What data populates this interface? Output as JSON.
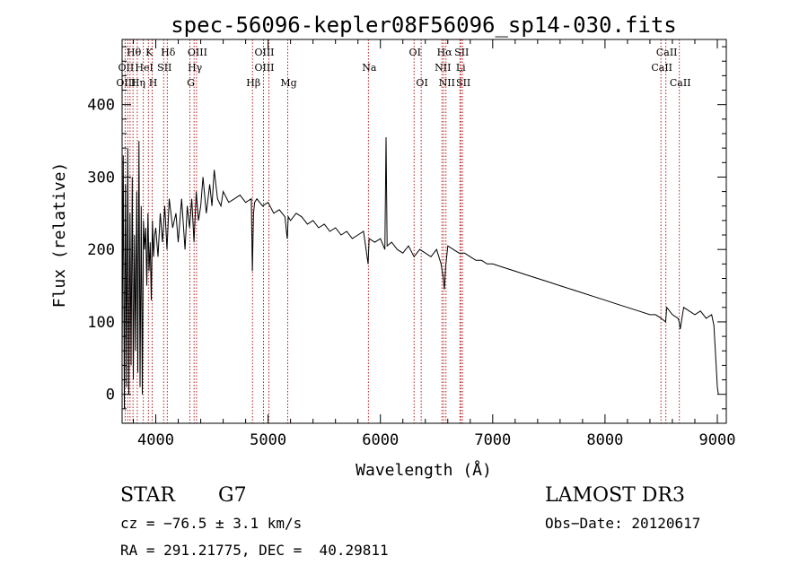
{
  "chart_data": {
    "type": "line",
    "title": "spec-56096-kepler08F56096_sp14-030.fits",
    "xlabel": "Wavelength (Å)",
    "ylabel": "Flux (relative)",
    "xlim": [
      3700,
      9080
    ],
    "ylim": [
      -40,
      490
    ],
    "xticks": [
      4000,
      5000,
      6000,
      7000,
      8000,
      9000
    ],
    "yticks": [
      0,
      100,
      200,
      300,
      400
    ],
    "series": [
      {
        "name": "spectrum",
        "x": [
          3700,
          3710,
          3720,
          3730,
          3740,
          3750,
          3760,
          3770,
          3780,
          3790,
          3800,
          3810,
          3820,
          3830,
          3840,
          3850,
          3860,
          3870,
          3880,
          3890,
          3900,
          3910,
          3920,
          3930,
          3940,
          3950,
          3960,
          3970,
          3980,
          3990,
          4000,
          4020,
          4040,
          4060,
          4080,
          4100,
          4120,
          4150,
          4180,
          4200,
          4230,
          4260,
          4280,
          4300,
          4320,
          4340,
          4360,
          4380,
          4400,
          4420,
          4450,
          4480,
          4500,
          4520,
          4550,
          4580,
          4600,
          4650,
          4700,
          4750,
          4800,
          4850,
          4860,
          4870,
          4880,
          4900,
          4950,
          5000,
          5050,
          5100,
          5150,
          5170,
          5180,
          5200,
          5250,
          5300,
          5350,
          5400,
          5450,
          5500,
          5550,
          5600,
          5650,
          5700,
          5750,
          5800,
          5850,
          5890,
          5900,
          5950,
          6000,
          6040,
          6050,
          6060,
          6100,
          6150,
          6200,
          6250,
          6300,
          6350,
          6400,
          6450,
          6500,
          6540,
          6560,
          6570,
          6580,
          6600,
          6650,
          6700,
          6750,
          6800,
          6850,
          6900,
          6950,
          7000,
          7100,
          7200,
          7300,
          7400,
          7500,
          7600,
          7700,
          7800,
          7900,
          8000,
          8100,
          8200,
          8300,
          8400,
          8450,
          8500,
          8540,
          8550,
          8600,
          8650,
          8660,
          8670,
          8700,
          8750,
          8800,
          8850,
          8900,
          8950,
          8970,
          8990,
          9000,
          9005,
          9010
        ],
        "values": [
          50,
          330,
          -20,
          290,
          10,
          340,
          0,
          250,
          40,
          300,
          20,
          220,
          60,
          280,
          30,
          350,
          10,
          260,
          0,
          240,
          200,
          230,
          150,
          250,
          170,
          210,
          130,
          240,
          190,
          220,
          230,
          190,
          250,
          210,
          260,
          200,
          270,
          230,
          250,
          210,
          270,
          200,
          260,
          230,
          270,
          210,
          280,
          240,
          260,
          300,
          250,
          290,
          260,
          310,
          270,
          260,
          280,
          265,
          270,
          275,
          265,
          270,
          170,
          250,
          265,
          270,
          260,
          265,
          250,
          255,
          245,
          215,
          245,
          240,
          250,
          245,
          235,
          240,
          230,
          235,
          225,
          230,
          220,
          225,
          215,
          220,
          225,
          180,
          215,
          210,
          215,
          200,
          355,
          205,
          210,
          200,
          195,
          205,
          190,
          200,
          195,
          190,
          200,
          180,
          160,
          145,
          175,
          205,
          200,
          195,
          195,
          190,
          185,
          185,
          180,
          180,
          175,
          170,
          165,
          160,
          155,
          150,
          145,
          140,
          135,
          130,
          125,
          120,
          115,
          110,
          110,
          105,
          100,
          120,
          110,
          105,
          100,
          90,
          120,
          115,
          110,
          115,
          105,
          110,
          95,
          40,
          10,
          5,
          0
        ]
      }
    ],
    "line_labels": [
      {
        "text": "Hθ",
        "x": 3797,
        "row": 0
      },
      {
        "text": "K",
        "x": 3934,
        "row": 0
      },
      {
        "text": "Hδ",
        "x": 4102,
        "row": 0
      },
      {
        "text": "OIII",
        "x": 4363,
        "row": 0
      },
      {
        "text": "OIII",
        "x": 4959,
        "row": 0
      },
      {
        "text": "OI",
        "x": 6300,
        "row": 0
      },
      {
        "text": "Hα",
        "x": 6563,
        "row": 0
      },
      {
        "text": "SII",
        "x": 6716,
        "row": 0
      },
      {
        "text": "CaII",
        "x": 8542,
        "row": 0
      },
      {
        "text": "OII",
        "x": 3727,
        "row": 1
      },
      {
        "text": "HeI",
        "x": 3889,
        "row": 1
      },
      {
        "text": "SII",
        "x": 4070,
        "row": 1
      },
      {
        "text": "Hγ",
        "x": 4341,
        "row": 1
      },
      {
        "text": "OIII",
        "x": 4959,
        "row": 1
      },
      {
        "text": "Na",
        "x": 5893,
        "row": 1
      },
      {
        "text": "NII",
        "x": 6548,
        "row": 1
      },
      {
        "text": "Li",
        "x": 6708,
        "row": 1
      },
      {
        "text": "CaII",
        "x": 8498,
        "row": 1
      },
      {
        "text": "OIII",
        "x": 3727,
        "row": 2
      },
      {
        "text": "Hη",
        "x": 3835,
        "row": 2
      },
      {
        "text": "H",
        "x": 3968,
        "row": 2
      },
      {
        "text": "G",
        "x": 4304,
        "row": 2
      },
      {
        "text": "Hβ",
        "x": 4861,
        "row": 2
      },
      {
        "text": "Mg",
        "x": 5175,
        "row": 2
      },
      {
        "text": "OI",
        "x": 6363,
        "row": 2
      },
      {
        "text": "NII",
        "x": 6584,
        "row": 2
      },
      {
        "text": "SII",
        "x": 6731,
        "row": 2
      },
      {
        "text": "CaII",
        "x": 8662,
        "row": 2
      }
    ],
    "line_markers": [
      3727,
      3750,
      3771,
      3797,
      3835,
      3889,
      3934,
      3968,
      4070,
      4102,
      4304,
      4341,
      4363,
      4861,
      4959,
      5007,
      5175,
      5893,
      6300,
      6363,
      6548,
      6563,
      6584,
      6708,
      6716,
      6731,
      8498,
      8542,
      8662
    ]
  },
  "info": {
    "object_class": "STAR",
    "subclass": "G7",
    "survey": "LAMOST DR3",
    "cz": "cz = −76.5 ± 3.1 km/s",
    "obs_date": "Obs−Date: 20120617",
    "coords": "RA = 291.21775, DEC =  40.29811"
  },
  "colors": {
    "axis": "#000000",
    "spectrum": "#000000",
    "marker": "#b00000"
  }
}
